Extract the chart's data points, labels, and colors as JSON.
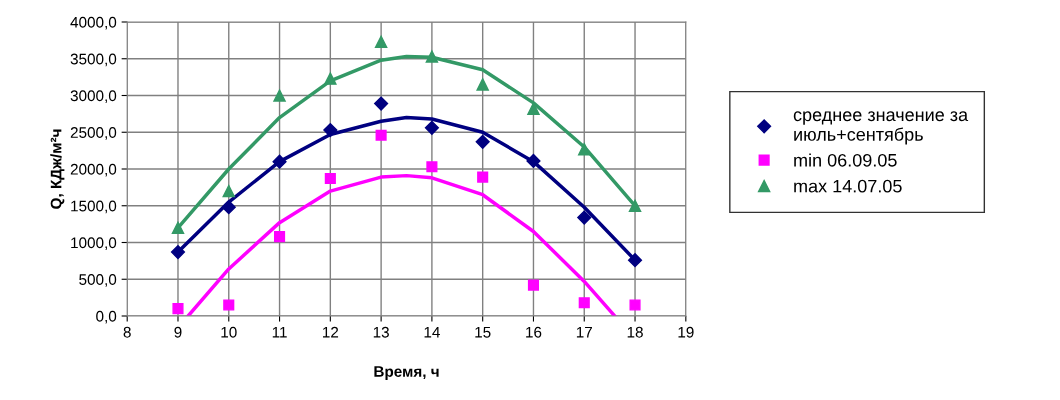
{
  "chart_data": {
    "type": "scatter",
    "xlabel": "Время, ч",
    "ylabel": "Q, КДж/м²ч",
    "xlim": [
      8,
      19
    ],
    "xticks": [
      8,
      9,
      10,
      11,
      12,
      13,
      14,
      15,
      16,
      17,
      18,
      19
    ],
    "ylim": [
      0,
      4000
    ],
    "yticks": [
      {
        "value": 0,
        "label": "0,0"
      },
      {
        "value": 500,
        "label": "500,0"
      },
      {
        "value": 1000,
        "label": "1000,0"
      },
      {
        "value": 1500,
        "label": "1500,0"
      },
      {
        "value": 2000,
        "label": "2000,0"
      },
      {
        "value": 2500,
        "label": "2500,0"
      },
      {
        "value": 3000,
        "label": "3000,0"
      },
      {
        "value": 3500,
        "label": "3500,0"
      },
      {
        "value": 4000,
        "label": "4000,0"
      }
    ],
    "grid": true,
    "legend": "right",
    "series": [
      {
        "name": "среднее значение за\nиюль+сентябрь",
        "color": "#000080",
        "marker": "diamond",
        "x": [
          9,
          10,
          11,
          12,
          13,
          14,
          15,
          16,
          17,
          18
        ],
        "values": [
          870,
          1480,
          2100,
          2530,
          2890,
          2560,
          2370,
          2110,
          1340,
          760
        ]
      },
      {
        "name": "min 06.09.05",
        "color": "#ff00ff",
        "marker": "square",
        "x": [
          9,
          10,
          11,
          12,
          13,
          14,
          15,
          16,
          17,
          18
        ],
        "values": [
          100,
          150,
          1080,
          1870,
          2460,
          2030,
          1890,
          420,
          180,
          150
        ]
      },
      {
        "name": "max 14.07.05",
        "color": "#339966",
        "marker": "triangle",
        "x": [
          9,
          10,
          11,
          12,
          13,
          14,
          15,
          16,
          17,
          18
        ],
        "values": [
          1200,
          1700,
          3000,
          3230,
          3730,
          3530,
          3150,
          2820,
          2270,
          1500
        ]
      },
      {
        "type": "line",
        "color": "#000080",
        "x": [
          9,
          10,
          11,
          12,
          13,
          13.5,
          14,
          15,
          16,
          17,
          18
        ],
        "values": [
          870,
          1550,
          2100,
          2470,
          2650,
          2700,
          2680,
          2500,
          2100,
          1480,
          760
        ]
      },
      {
        "type": "line",
        "color": "#ff00ff",
        "x": [
          9.2,
          10,
          11,
          12,
          13,
          13.5,
          14,
          15,
          16,
          17,
          17.6
        ],
        "values": [
          0,
          640,
          1270,
          1700,
          1890,
          1910,
          1880,
          1650,
          1150,
          470,
          0
        ]
      },
      {
        "type": "line",
        "color": "#339966",
        "x": [
          9,
          10,
          11,
          12,
          13,
          13.5,
          14,
          15,
          16,
          17,
          18
        ],
        "values": [
          1200,
          2000,
          2700,
          3200,
          3480,
          3530,
          3520,
          3350,
          2900,
          2300,
          1500
        ]
      }
    ]
  }
}
